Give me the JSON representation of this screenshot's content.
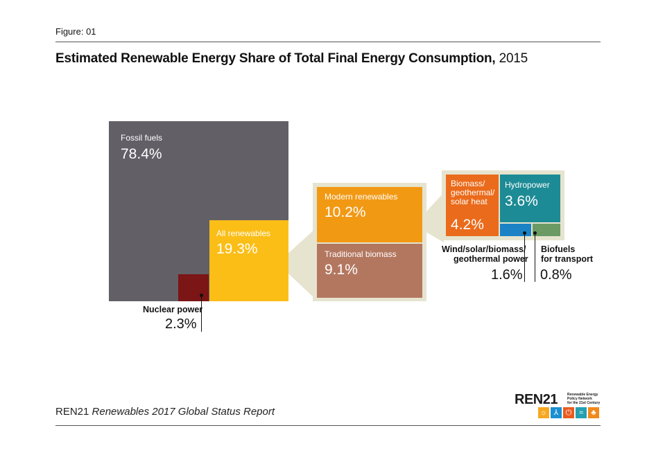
{
  "figure_label": "Figure: 01",
  "title": {
    "bold": "Estimated Renewable Energy Share of Total Final Energy Consumption,",
    "year": "2015"
  },
  "chart_data": {
    "type": "treemap",
    "unit": "%",
    "segments": [
      {
        "name": "Fossil fuels",
        "value": 78.4,
        "color": "#625f67"
      },
      {
        "name": "Nuclear power",
        "value": 2.3,
        "color": "#7b1516"
      },
      {
        "name": "All renewables",
        "value": 19.3,
        "color": "#fbbe17",
        "children": [
          {
            "name": "Modern renewables",
            "value": 10.2,
            "color": "#f29914",
            "children": [
              {
                "name": "Biomass/ geothermal/ solar heat",
                "value": 4.2,
                "color": "#ea6b1b"
              },
              {
                "name": "Hydropower",
                "value": 3.6,
                "color": "#1d8b95"
              },
              {
                "name": "Wind/solar/biomass/ geothermal power",
                "value": 1.6,
                "color": "#1b82c5"
              },
              {
                "name": "Biofuels for transport",
                "value": 0.8,
                "color": "#6b9a64"
              }
            ]
          },
          {
            "name": "Traditional biomass",
            "value": 9.1,
            "color": "#b37760"
          }
        ]
      }
    ],
    "labels": {
      "fossil": {
        "name": "Fossil fuels",
        "value": "78.4%"
      },
      "nuclear": {
        "name": "Nuclear power",
        "value": "2.3%"
      },
      "renew": {
        "name": "All renewables",
        "value": "19.3%"
      },
      "modern": {
        "name": "Modern renewables",
        "value": "10.2%"
      },
      "trad": {
        "name": "Traditional biomass",
        "value": "9.1%"
      },
      "heat": {
        "line1": "Biomass/",
        "line2": "geothermal/",
        "line3": "solar heat",
        "value": "4.2%"
      },
      "hydro": {
        "name": "Hydropower",
        "value": "3.6%"
      },
      "power": {
        "line1": "Wind/solar/biomass/",
        "line2": "geothermal power",
        "value": "1.6%"
      },
      "biofuel": {
        "line1": "Biofuels",
        "line2": "for transport",
        "value": "0.8%"
      }
    },
    "colors": {
      "callout_frame": "#e6e4cf",
      "callout_wedge": "#e6e4cf"
    }
  },
  "footer": {
    "org": "REN21",
    "report": "Renewables 2017 Global Status Report"
  },
  "logo": {
    "word": "REN",
    "number": "21",
    "tagline1": "Renewable Energy",
    "tagline2": "Policy Network",
    "tagline3": "for the 21st Century",
    "icon_colors": [
      "#f7a823",
      "#1a8fd1",
      "#ea5b1e",
      "#25a0b0",
      "#f08a1c"
    ],
    "icons": [
      "sun-icon",
      "wind-icon",
      "power-icon",
      "wave-icon",
      "leaf-icon"
    ]
  }
}
